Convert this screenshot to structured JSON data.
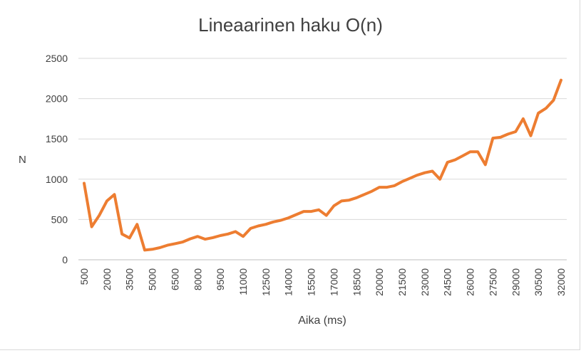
{
  "chart_data": {
    "type": "line",
    "title": "Lineaarinen haku O(n)",
    "xlabel": "Aika (ms)",
    "ylabel": "N",
    "ylim": [
      0,
      2500
    ],
    "yticks": [
      0,
      500,
      1000,
      1500,
      2000,
      2500
    ],
    "grid": true,
    "legend": "none",
    "x": [
      500,
      1000,
      1500,
      2000,
      2500,
      3000,
      3500,
      4000,
      4500,
      5000,
      5500,
      6000,
      6500,
      7000,
      7500,
      8000,
      8500,
      9000,
      9500,
      10000,
      10500,
      11000,
      11500,
      12000,
      12500,
      13000,
      13500,
      14000,
      14500,
      15000,
      15500,
      16000,
      16500,
      17000,
      17500,
      18000,
      18500,
      19000,
      19500,
      20000,
      20500,
      21000,
      21500,
      22000,
      22500,
      23000,
      23500,
      24000,
      24500,
      25000,
      25500,
      26000,
      26500,
      27000,
      27500,
      28000,
      28500,
      29000,
      29500,
      30000,
      30500,
      31000,
      31500,
      32000
    ],
    "xtick_labels": [
      "500",
      "2000",
      "3500",
      "5000",
      "6500",
      "8000",
      "9500",
      "11000",
      "12500",
      "14000",
      "15500",
      "17000",
      "18500",
      "20000",
      "21500",
      "23000",
      "24500",
      "26000",
      "27500",
      "29000",
      "30500",
      "32000"
    ],
    "series": [
      {
        "color": "#ED7D31",
        "values": [
          950,
          410,
          550,
          730,
          810,
          320,
          270,
          440,
          120,
          130,
          150,
          180,
          200,
          220,
          260,
          290,
          255,
          275,
          300,
          320,
          350,
          290,
          390,
          420,
          440,
          470,
          490,
          520,
          560,
          600,
          600,
          620,
          550,
          670,
          730,
          740,
          770,
          810,
          850,
          900,
          900,
          920,
          970,
          1010,
          1050,
          1080,
          1100,
          1000,
          1210,
          1240,
          1290,
          1340,
          1340,
          1180,
          1510,
          1520,
          1560,
          1590,
          1750,
          1540,
          1820,
          1880,
          1980,
          2230
        ]
      }
    ]
  }
}
